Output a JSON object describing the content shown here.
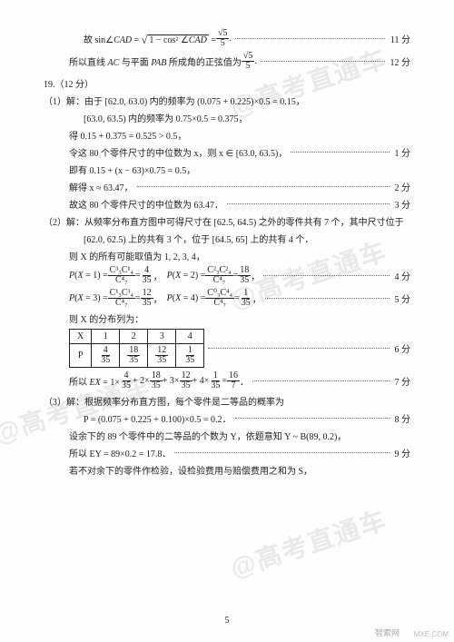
{
  "watermark": "@高考直通车",
  "lines": [
    {
      "cls": "indent2",
      "content": "故 sin∠CAD = √(1−cos²∠CAD) = √5 / 5 .",
      "frac": {
        "num": "√5",
        "den": "5"
      },
      "prefix": "故 sin∠<span class='math'>CAD</span> = <span class='sqrt'><span class='rad'>1 − cos² ∠<span class=\"math\">CAD</span></span></span> = ",
      "pts": "11 分"
    },
    {
      "cls": "indent",
      "prefix": "所以直线 <span class='math'>AC</span> 与平面 <span class='math'>PAB</span> 所成角的正弦值为 ",
      "frac": {
        "num": "√5",
        "den": "5"
      },
      "suffix": " .",
      "pts": "12 分"
    }
  ],
  "q19": {
    "head": "19.（12 分）",
    "p1a": "（1）解：由于 [62.0, 63.0) 内的频率为 (0.075 + 0.225)×0.5 = 0.15，",
    "p1b": "[63.0, 63.5) 内的频率为 0.75×0.5 = 0.375，",
    "p1c": "得 0.15 + 0.375 = 0.525 > 0.5，",
    "p1d": "令这 80 个零件尺寸的中位数为 x，则 x ∈ [63.0, 63.5)，",
    "p1d_pts": "1 分",
    "p1e": "即有 0.15 + (x − 63)×0.75 = 0.5，",
    "p1f": "解得 x ≈ 63.47，",
    "p1f_pts": "2 分",
    "p1g": "故这 80 个零件尺寸的中位数为 63.47．",
    "p1g_pts": "3 分",
    "p2a": "（2）解：从频率分布直方图中可得尺寸在 [62.5, 64.5) 之外的零件共有 7 个，其中尺寸位于",
    "p2b": "[62.0, 62.5) 上的共有 3 个，位于 [64.5, 65] 上的共有 4 个．",
    "p2c": "则 X 的所有可能取值为 1, 2, 3, 4，",
    "px12_pts": "4 分",
    "px34_pts": "5 分",
    "dist_lead": "则 X 的分布列为：",
    "dist_x": [
      "X",
      "1",
      "2",
      "3",
      "4"
    ],
    "dist_p_label": "P",
    "dist_p": [
      {
        "num": "4",
        "den": "35"
      },
      {
        "num": "18",
        "den": "35"
      },
      {
        "num": "12",
        "den": "35"
      },
      {
        "num": "1",
        "den": "35"
      }
    ],
    "dist_pts": "6 分",
    "ex_text": "所以 EX = 1×4/35 + 2×18/35 + 3×12/35 + 4×1/35 = 16/7．",
    "ex_pts": "7 分",
    "p3a": "（3）解：根据频率分布直方图，每个零件是二等品的概率为",
    "p3b": "P = (0.075 + 0.225 + 0.100)×0.5 = 0.2．",
    "p3b_pts": "8 分",
    "p3c": "设余下的 89 个零件中的二等品的个数为 Y，依题意知 Y ~ B(89, 0.2)，",
    "p3d": "所以 EY = 89×0.2 = 17.8．",
    "p3d_pts": "9 分",
    "p3e": "若不对余下的零件作检验，设检验费用与赔偿费用之和为 S，"
  },
  "P": {
    "x1": {
      "num1": "C³₃C¹₄",
      "den1": "C⁴₇",
      "eq": {
        "num": "4",
        "den": "35"
      }
    },
    "x2": {
      "num1": "C²₃C²₄",
      "den1": "C⁴₇",
      "eq": {
        "num": "18",
        "den": "35"
      }
    },
    "x3": {
      "num1": "C¹₃C³₄",
      "den1": "C⁴₇",
      "eq": {
        "num": "12",
        "den": "35"
      }
    },
    "x4": {
      "num1": "C⁰₃C⁴₄",
      "den1": "C⁴₇",
      "eq": {
        "num": "1",
        "den": "35"
      }
    }
  },
  "ex_frac": [
    {
      "num": "4",
      "den": "35"
    },
    {
      "num": "18",
      "den": "35"
    },
    {
      "num": "12",
      "den": "35"
    },
    {
      "num": "1",
      "den": "35"
    },
    {
      "num": "16",
      "den": "7"
    }
  ],
  "pagenum": "5",
  "credit": "MXE.COM",
  "logo": "智索网"
}
